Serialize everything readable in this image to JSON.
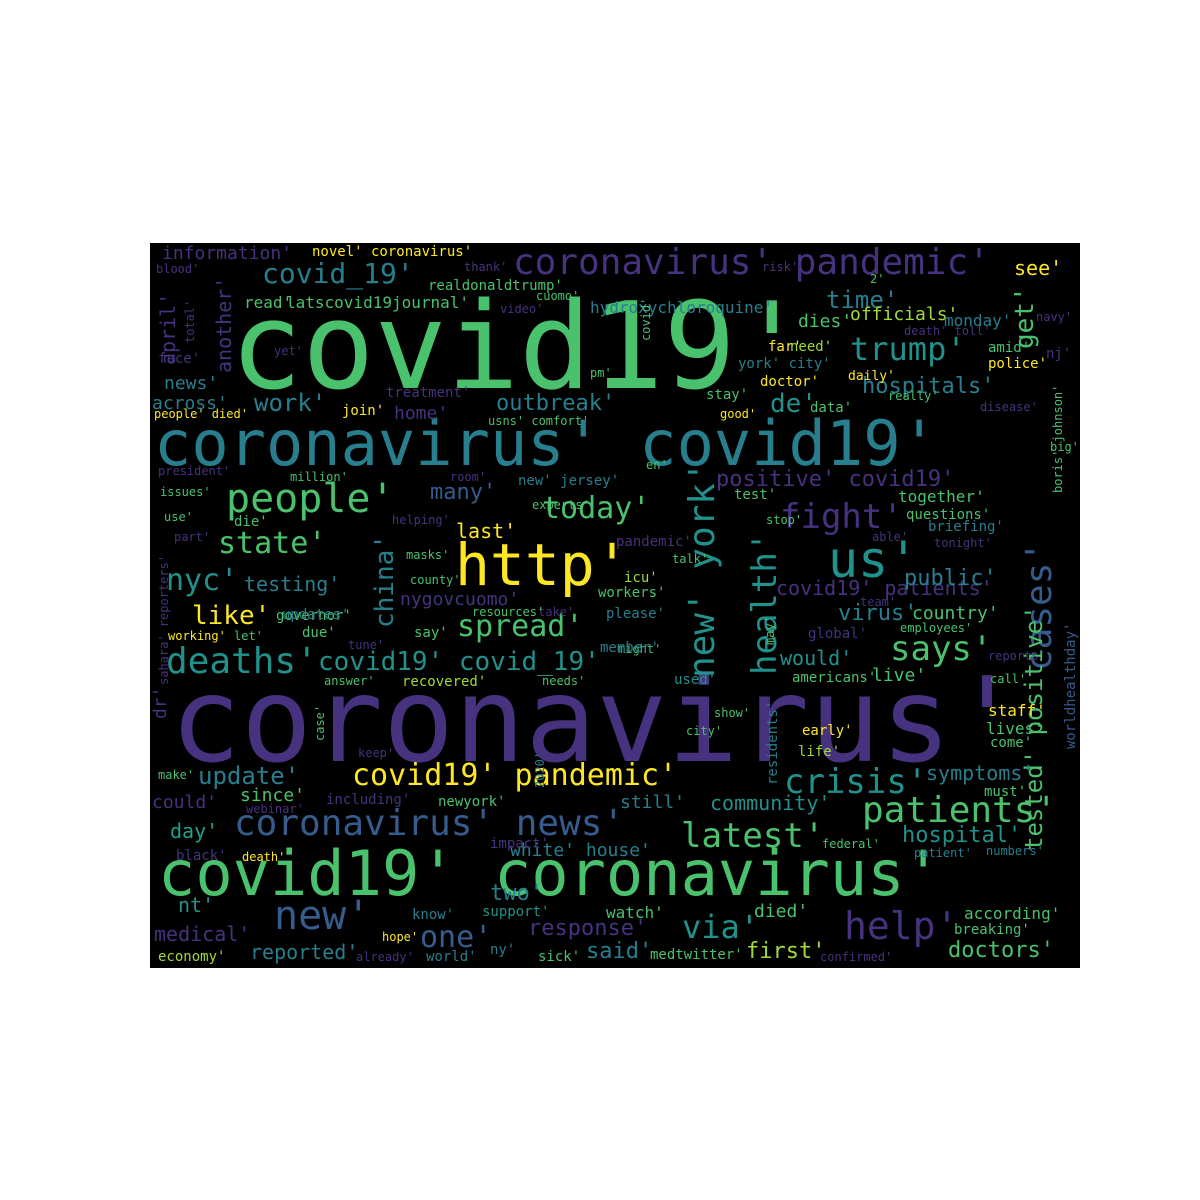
{
  "palette": {
    "purple": "#46327e",
    "deep_purple": "#440154",
    "blue": "#365c8d",
    "slate": "#3b528b",
    "teal": "#277f8e",
    "cyan_teal": "#21918c",
    "sea": "#1fa187",
    "green": "#4ac16d",
    "lime": "#a0da39",
    "yellow": "#fde725"
  },
  "words": [
    {
      "text": "covid19'",
      "color": "#4ac16d"
    },
    {
      "text": "coronavirus'",
      "color": "#46327e"
    },
    {
      "text": "coronavirus' covid19'",
      "color": "#277f8e"
    },
    {
      "text": "covid19' coronavirus'",
      "color": "#4ac16d"
    },
    {
      "text": "http'",
      "color": "#fde725"
    },
    {
      "text": "us'",
      "color": "#21918c"
    },
    {
      "text": "coronavirus' pandemic'",
      "color": "#46327e"
    },
    {
      "text": "coronavirus' news'",
      "color": "#365c8d"
    },
    {
      "text": "people'",
      "color": "#4ac16d"
    },
    {
      "text": "new' york'",
      "color": "#21918c"
    },
    {
      "text": "deaths'",
      "color": "#21918c"
    },
    {
      "text": "covid19' covid_19'",
      "color": "#21918c"
    },
    {
      "text": "covid19' pandemic'",
      "color": "#fde725"
    },
    {
      "text": "patients'",
      "color": "#4ac16d"
    },
    {
      "text": "crisis'",
      "color": "#21918c"
    },
    {
      "text": "new'",
      "color": "#365c8d"
    },
    {
      "text": "help'",
      "color": "#46327e"
    },
    {
      "text": "latest'",
      "color": "#4ac16d"
    },
    {
      "text": "cases'",
      "color": "#365c8d"
    },
    {
      "text": "health'",
      "color": "#21918c"
    },
    {
      "text": "trump'",
      "color": "#21918c"
    },
    {
      "text": "covid_19'",
      "color": "#277f8e"
    },
    {
      "text": "state'",
      "color": "#4ac16d"
    },
    {
      "text": "today'",
      "color": "#4ac16d"
    },
    {
      "text": "spread'",
      "color": "#4ac16d"
    },
    {
      "text": "says'",
      "color": "#4ac16d"
    },
    {
      "text": "fight'",
      "color": "#46327e"
    },
    {
      "text": "nyc'",
      "color": "#21918c"
    },
    {
      "text": "update'",
      "color": "#277f8e"
    },
    {
      "text": "via'",
      "color": "#21918c"
    },
    {
      "text": "one'",
      "color": "#365c8d"
    },
    {
      "text": "tested' positive'",
      "color": "#4ac16d"
    },
    {
      "text": "china'",
      "color": "#277f8e"
    },
    {
      "text": "like'",
      "color": "#fde725"
    },
    {
      "text": "positive' covid19'",
      "color": "#46327e"
    },
    {
      "text": "covid19' patients'",
      "color": "#46327e"
    },
    {
      "text": "get'",
      "color": "#4ac16d"
    },
    {
      "text": "de'",
      "color": "#21918c"
    },
    {
      "text": "time'",
      "color": "#277f8e"
    },
    {
      "text": "work'",
      "color": "#277f8e"
    },
    {
      "text": "outbreak'",
      "color": "#277f8e"
    },
    {
      "text": "hospitals'",
      "color": "#277f8e"
    },
    {
      "text": "many'",
      "color": "#365c8d"
    },
    {
      "text": "public'",
      "color": "#277f8e"
    },
    {
      "text": "virus'",
      "color": "#277f8e"
    },
    {
      "text": "would'",
      "color": "#21918c"
    },
    {
      "text": "response'",
      "color": "#46327e"
    },
    {
      "text": "doctors'",
      "color": "#4ac16d"
    },
    {
      "text": "first'",
      "color": "#a0da39"
    },
    {
      "text": "hospital'",
      "color": "#21918c"
    },
    {
      "text": "community'",
      "color": "#21918c"
    },
    {
      "text": "symptoms'",
      "color": "#277f8e"
    },
    {
      "text": "day'",
      "color": "#1fa187"
    },
    {
      "text": "nt'",
      "color": "#21918c"
    },
    {
      "text": "two'",
      "color": "#277f8e"
    },
    {
      "text": "said'",
      "color": "#277f8e"
    },
    {
      "text": "reported'",
      "color": "#277f8e"
    },
    {
      "text": "medical'",
      "color": "#46327e"
    },
    {
      "text": "see'",
      "color": "#fde725"
    },
    {
      "text": "last'",
      "color": "#fde725"
    },
    {
      "text": "testing'",
      "color": "#277f8e"
    },
    {
      "text": "nygovcuomo'",
      "color": "#46327e"
    },
    {
      "text": "since'",
      "color": "#4ac16d"
    },
    {
      "text": "could'",
      "color": "#46327e"
    },
    {
      "text": "still'",
      "color": "#277f8e"
    },
    {
      "text": "white' house'",
      "color": "#277f8e"
    },
    {
      "text": "country'",
      "color": "#4ac16d"
    },
    {
      "text": "live'",
      "color": "#4ac16d"
    },
    {
      "text": "home'",
      "color": "#46327e"
    },
    {
      "text": "officials'",
      "color": "#a0da39"
    },
    {
      "text": "dies'",
      "color": "#4ac16d"
    },
    {
      "text": "monday'",
      "color": "#277f8e"
    },
    {
      "text": "april'",
      "color": "#46327e"
    },
    {
      "text": "another'",
      "color": "#46327e"
    },
    {
      "text": "information'",
      "color": "#46327e"
    },
    {
      "text": "novel' coronavirus'",
      "color": "#fde725"
    },
    {
      "text": "hydroxychloroquine'",
      "color": "#277f8e"
    },
    {
      "text": "read'",
      "color": "#4ac16d"
    },
    {
      "text": "latscovid19journal'",
      "color": "#4ac16d"
    },
    {
      "text": "news'",
      "color": "#277f8e"
    },
    {
      "text": "across'",
      "color": "#277f8e"
    },
    {
      "text": "together'",
      "color": "#4ac16d"
    },
    {
      "text": "according'",
      "color": "#4ac16d"
    },
    {
      "text": "watch'",
      "color": "#4ac16d"
    },
    {
      "text": "died'",
      "color": "#4ac16d"
    },
    {
      "text": "staff'",
      "color": "#fde725"
    },
    {
      "text": "lives'",
      "color": "#4ac16d"
    },
    {
      "text": "join'",
      "color": "#fde725"
    },
    {
      "text": "doctor'",
      "color": "#fde725"
    },
    {
      "text": "far'",
      "color": "#fde725"
    },
    {
      "text": "need'",
      "color": "#a0da39"
    },
    {
      "text": "daily'",
      "color": "#fde725"
    },
    {
      "text": "test'",
      "color": "#4ac16d"
    },
    {
      "text": "briefing'",
      "color": "#277f8e"
    },
    {
      "text": "questions'",
      "color": "#4ac16d"
    },
    {
      "text": "governor'",
      "color": "#4ac16d"
    },
    {
      "text": "due'",
      "color": "#4ac16d"
    },
    {
      "text": "say'",
      "color": "#4ac16d"
    },
    {
      "text": "die'",
      "color": "#4ac16d"
    },
    {
      "text": "updates'",
      "color": "#277f8e"
    },
    {
      "text": "pandemic'",
      "color": "#46327e"
    },
    {
      "text": "new' jersey'",
      "color": "#277f8e"
    },
    {
      "text": "employees'",
      "color": "#4ac16d"
    },
    {
      "text": "recovered'",
      "color": "#a0da39"
    },
    {
      "text": "americans'",
      "color": "#4ac16d"
    },
    {
      "text": "used'",
      "color": "#21918c"
    },
    {
      "text": "must'",
      "color": "#4ac16d"
    },
    {
      "text": "life'",
      "color": "#a0da39"
    },
    {
      "text": "come'",
      "color": "#4ac16d"
    },
    {
      "text": "know'",
      "color": "#277f8e"
    },
    {
      "text": "support'",
      "color": "#21918c"
    },
    {
      "text": "ny'",
      "color": "#277f8e"
    },
    {
      "text": "world'",
      "color": "#277f8e"
    },
    {
      "text": "sick'",
      "color": "#4ac16d"
    },
    {
      "text": "medtwitter'",
      "color": "#4ac16d"
    },
    {
      "text": "economy'",
      "color": "#a0da39"
    },
    {
      "text": "breaking'",
      "color": "#4ac16d"
    },
    {
      "text": "confirmed'",
      "color": "#46327e"
    },
    {
      "text": "worldhealthday'",
      "color": "#365c8d"
    },
    {
      "text": "numbers'",
      "color": "#277f8e"
    },
    {
      "text": "patient'",
      "color": "#277f8e"
    },
    {
      "text": "federal'",
      "color": "#4ac16d"
    },
    {
      "text": "impact'",
      "color": "#46327e"
    },
    {
      "text": "black'",
      "color": "#46327e"
    },
    {
      "text": "death'",
      "color": "#fde725"
    },
    {
      "text": "newyork'",
      "color": "#4ac16d"
    },
    {
      "text": "including'",
      "color": "#46327e"
    },
    {
      "text": "2020'",
      "color": "#277f8e"
    },
    {
      "text": "webinar'",
      "color": "#46327e"
    },
    {
      "text": "residents'",
      "color": "#277f8e"
    },
    {
      "text": "dr'",
      "color": "#46327e"
    },
    {
      "text": "sahara' reporters'",
      "color": "#46327e"
    },
    {
      "text": "working'",
      "color": "#fde725"
    },
    {
      "text": "let'",
      "color": "#4ac16d"
    },
    {
      "text": "tune'",
      "color": "#46327e"
    },
    {
      "text": "answer'",
      "color": "#4ac16d"
    },
    {
      "text": "needs'",
      "color": "#4ac16d"
    },
    {
      "text": "city'",
      "color": "#4ac16d"
    },
    {
      "text": "early'",
      "color": "#fde725"
    },
    {
      "text": "keep'",
      "color": "#46327e"
    },
    {
      "text": "case'",
      "color": "#4ac16d"
    },
    {
      "text": "make'",
      "color": "#4ac16d"
    },
    {
      "text": "might'",
      "color": "#4ac16d"
    },
    {
      "text": "may'",
      "color": "#4ac16d"
    },
    {
      "text": "global'",
      "color": "#46327e"
    },
    {
      "text": "reports'",
      "color": "#46327e"
    },
    {
      "text": "call'",
      "color": "#4ac16d"
    },
    {
      "text": "show'",
      "color": "#4ac16d"
    },
    {
      "text": "team'",
      "color": "#46327e"
    },
    {
      "text": "member'",
      "color": "#277f8e"
    },
    {
      "text": "please'",
      "color": "#277f8e"
    },
    {
      "text": "take'",
      "color": "#46327e"
    },
    {
      "text": "resources'",
      "color": "#4ac16d"
    },
    {
      "text": "workers'",
      "color": "#4ac16d"
    },
    {
      "text": "icu'",
      "color": "#a0da39"
    },
    {
      "text": "county'",
      "color": "#4ac16d"
    },
    {
      "text": "masks'",
      "color": "#4ac16d"
    },
    {
      "text": "talk'",
      "color": "#4ac16d"
    },
    {
      "text": "stop'",
      "color": "#4ac16d"
    },
    {
      "text": "able'",
      "color": "#46327e"
    },
    {
      "text": "tonight'",
      "color": "#46327e"
    },
    {
      "text": "helping'",
      "color": "#46327e"
    },
    {
      "text": "experts'",
      "color": "#4ac16d"
    },
    {
      "text": "en'",
      "color": "#4ac16d"
    },
    {
      "text": "issues'",
      "color": "#4ac16d"
    },
    {
      "text": "use'",
      "color": "#4ac16d"
    },
    {
      "text": "part'",
      "color": "#46327e"
    },
    {
      "text": "president'",
      "color": "#46327e"
    },
    {
      "text": "million'",
      "color": "#4ac16d"
    },
    {
      "text": "room'",
      "color": "#46327e"
    },
    {
      "text": "people' died'",
      "color": "#fde725"
    },
    {
      "text": "usns' comfort'",
      "color": "#4ac16d"
    },
    {
      "text": "treatment'",
      "color": "#46327e"
    },
    {
      "text": "stay'",
      "color": "#4ac16d"
    },
    {
      "text": "good'",
      "color": "#fde725"
    },
    {
      "text": "data'",
      "color": "#4ac16d"
    },
    {
      "text": "really'",
      "color": "#4ac16d"
    },
    {
      "text": "disease'",
      "color": "#46327e"
    },
    {
      "text": "big'",
      "color": "#4ac16d"
    },
    {
      "text": "boris' johnson'",
      "color": "#4ac16d"
    },
    {
      "text": "york' city'",
      "color": "#277f8e"
    },
    {
      "text": "police'",
      "color": "#fde725"
    },
    {
      "text": "amid'",
      "color": "#4ac16d"
    },
    {
      "text": "nj'",
      "color": "#46327e"
    },
    {
      "text": "death' toll'",
      "color": "#46327e"
    },
    {
      "text": "navy'",
      "color": "#46327e"
    },
    {
      "text": "yet'",
      "color": "#46327e"
    },
    {
      "text": "pm'",
      "color": "#4ac16d"
    },
    {
      "text": "covid'",
      "color": "#4ac16d"
    },
    {
      "text": "face'",
      "color": "#46327e"
    },
    {
      "text": "total'",
      "color": "#46327e"
    },
    {
      "text": "blood'",
      "color": "#46327e"
    },
    {
      "text": "thank'",
      "color": "#46327e"
    },
    {
      "text": "realdonaldtrump'",
      "color": "#4ac16d"
    },
    {
      "text": "risk'",
      "color": "#46327e"
    },
    {
      "text": "cuomo'",
      "color": "#4ac16d"
    },
    {
      "text": "video'",
      "color": "#46327e"
    },
    {
      "text": "2'",
      "color": "#4ac16d"
    },
    {
      "text": "hope'",
      "color": "#fde725"
    },
    {
      "text": "already'",
      "color": "#46327e"
    }
  ]
}
